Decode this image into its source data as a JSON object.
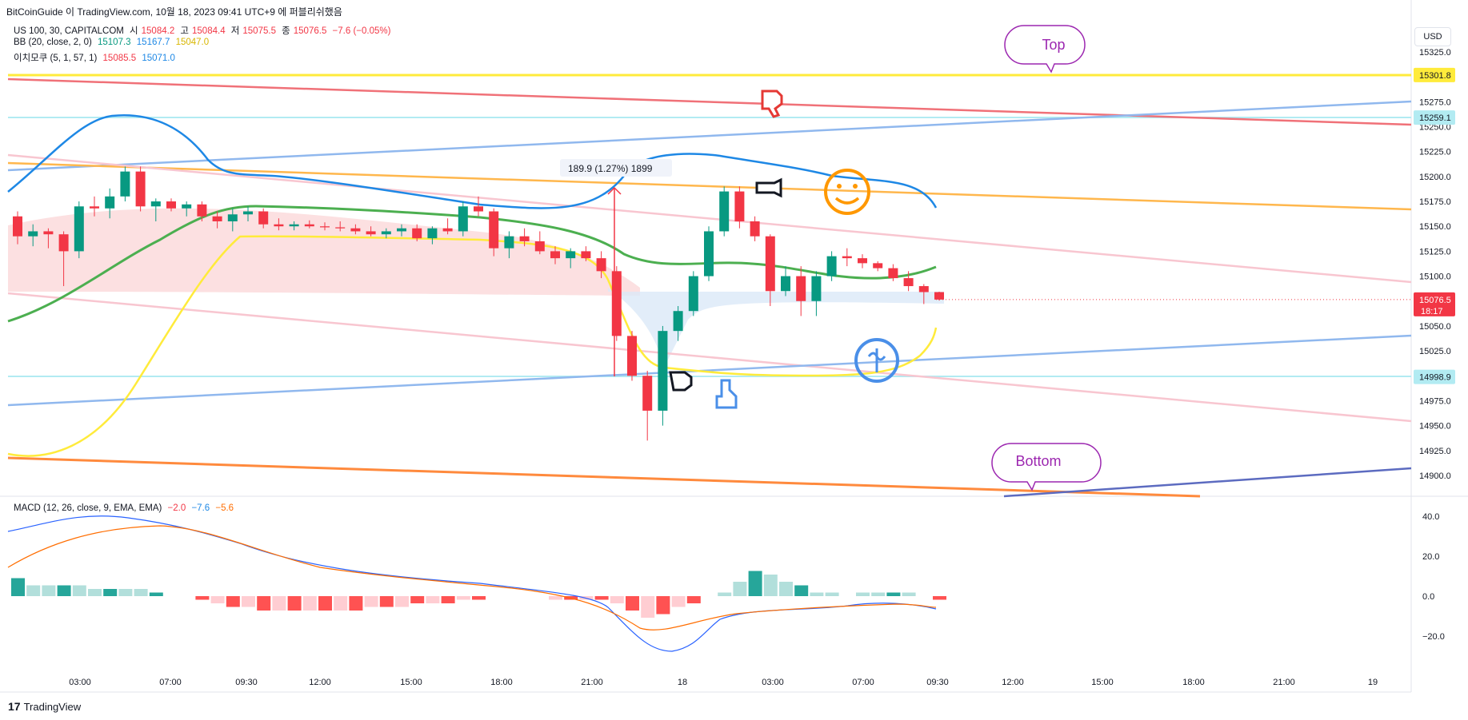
{
  "header": {
    "publish_line": "BitCoinGuide 이 TradingView.com, 10월 18, 2023 09:41 UTC+9 에 퍼블리쉬했음",
    "symbol": "US 100, 30, CAPITALCOM",
    "o_label": "시",
    "o_value": "15084.2",
    "h_label": "고",
    "h_value": "15084.4",
    "l_label": "저",
    "l_value": "15075.5",
    "c_label": "종",
    "c_value": "15076.5",
    "change": "−7.6 (−0.05%)",
    "bb_label": "BB (20, close, 2, 0)",
    "bb_basis": "15107.3",
    "bb_upper": "15167.7",
    "bb_lower": "15047.0",
    "ichimoku_label": "이치모쿠 (5, 1, 57, 1)",
    "ichi_a": "15085.5",
    "ichi_b": "15071.0",
    "macd_label": "MACD (12, 26, close, 9, EMA, EMA)",
    "macd_hist": "−2.0",
    "macd_line": "−7.6",
    "macd_signal": "−5.6"
  },
  "currency_button": "USD",
  "annotations": {
    "top_bubble": "Top",
    "bottom_bubble": "Bottom",
    "measure_label": "189.9 (1.27%) 1899"
  },
  "price_tags": {
    "top_level": "15301.8",
    "mid_level": "15259.1",
    "current": "15076.5",
    "countdown": "18:17",
    "low_level": "14998.9"
  },
  "colors": {
    "bull": "#089981",
    "bear": "#f23645",
    "bb_upper": "#1e88e5",
    "bb_basis": "#4caf50",
    "ichi_line": "#ffeb3b",
    "cloud_red": "#fbd8da",
    "cloud_blue": "#dbe8f8"
  },
  "chart_data": {
    "type": "candlestick",
    "y_axis_ticks": [
      "15325.0",
      "15300.0",
      "15275.0",
      "15250.0",
      "15225.0",
      "15200.0",
      "15175.0",
      "15150.0",
      "15125.0",
      "15100.0",
      "15075.0",
      "15050.0",
      "15025.0",
      "15000.0",
      "14975.0",
      "14950.0",
      "14925.0",
      "14900.0"
    ],
    "ylim": [
      14890,
      15335
    ],
    "x_axis_ticks": [
      "03:00",
      "07:00",
      "09:30",
      "12:00",
      "15:00",
      "18:00",
      "21:00",
      "18",
      "03:00",
      "07:00",
      "09:30",
      "12:00",
      "15:00",
      "18:00",
      "21:00",
      "19"
    ],
    "candles": [
      [
        15160,
        15165,
        15132,
        15140
      ],
      [
        15140,
        15152,
        15130,
        15145
      ],
      [
        15145,
        15148,
        15128,
        15142
      ],
      [
        15142,
        15145,
        15090,
        15125
      ],
      [
        15125,
        15175,
        15118,
        15170
      ],
      [
        15170,
        15180,
        15160,
        15168
      ],
      [
        15168,
        15188,
        15158,
        15180
      ],
      [
        15180,
        15210,
        15175,
        15205
      ],
      [
        15205,
        15210,
        15165,
        15170
      ],
      [
        15170,
        15178,
        15155,
        15175
      ],
      [
        15175,
        15178,
        15165,
        15168
      ],
      [
        15168,
        15175,
        15160,
        15172
      ],
      [
        15172,
        15175,
        15155,
        15160
      ],
      [
        15160,
        15165,
        15148,
        15155
      ],
      [
        15155,
        15168,
        15145,
        15162
      ],
      [
        15162,
        15170,
        15155,
        15165
      ],
      [
        15165,
        15168,
        15148,
        15152
      ],
      [
        15152,
        15158,
        15146,
        15150
      ],
      [
        15150,
        15155,
        15146,
        15152
      ],
      [
        15152,
        15156,
        15148,
        15150
      ],
      [
        15150,
        15154,
        15146,
        15149
      ],
      [
        15149,
        15155,
        15145,
        15148
      ],
      [
        15148,
        15152,
        15142,
        15145
      ],
      [
        15145,
        15150,
        15140,
        15142
      ],
      [
        15142,
        15148,
        15138,
        15145
      ],
      [
        15145,
        15152,
        15140,
        15148
      ],
      [
        15148,
        15152,
        15135,
        15138
      ],
      [
        15138,
        15150,
        15132,
        15148
      ],
      [
        15148,
        15158,
        15142,
        15145
      ],
      [
        15145,
        15175,
        15140,
        15170
      ],
      [
        15170,
        15180,
        15160,
        15165
      ],
      [
        15165,
        15168,
        15120,
        15128
      ],
      [
        15128,
        15145,
        15118,
        15140
      ],
      [
        15140,
        15148,
        15130,
        15135
      ],
      [
        15135,
        15145,
        15122,
        15125
      ],
      [
        15125,
        15130,
        15112,
        15118
      ],
      [
        15118,
        15128,
        15108,
        15125
      ],
      [
        15125,
        15130,
        15115,
        15118
      ],
      [
        15118,
        15125,
        15098,
        15105
      ],
      [
        15105,
        15110,
        15035,
        15040
      ],
      [
        15040,
        15045,
        14995,
        15000
      ],
      [
        15000,
        15005,
        14935,
        14965
      ],
      [
        14965,
        15050,
        14950,
        15045
      ],
      [
        15045,
        15070,
        15035,
        15065
      ],
      [
        15065,
        15105,
        15060,
        15100
      ],
      [
        15100,
        15150,
        15095,
        15145
      ],
      [
        15145,
        15190,
        15140,
        15185
      ],
      [
        15185,
        15190,
        15148,
        15155
      ],
      [
        15155,
        15160,
        15135,
        15140
      ],
      [
        15140,
        15142,
        15070,
        15085
      ],
      [
        15085,
        15110,
        15080,
        15100
      ],
      [
        15100,
        15110,
        15060,
        15075
      ],
      [
        15075,
        15105,
        15060,
        15100
      ],
      [
        15100,
        15125,
        15095,
        15120
      ],
      [
        15120,
        15128,
        15110,
        15118
      ],
      [
        15118,
        15122,
        15108,
        15113
      ],
      [
        15113,
        15115,
        15105,
        15108
      ],
      [
        15108,
        15112,
        15095,
        15098
      ],
      [
        15098,
        15105,
        15085,
        15090
      ],
      [
        15090,
        15092,
        15072,
        15084
      ],
      [
        15084,
        15084.4,
        15075.5,
        15076.5
      ]
    ]
  }
}
